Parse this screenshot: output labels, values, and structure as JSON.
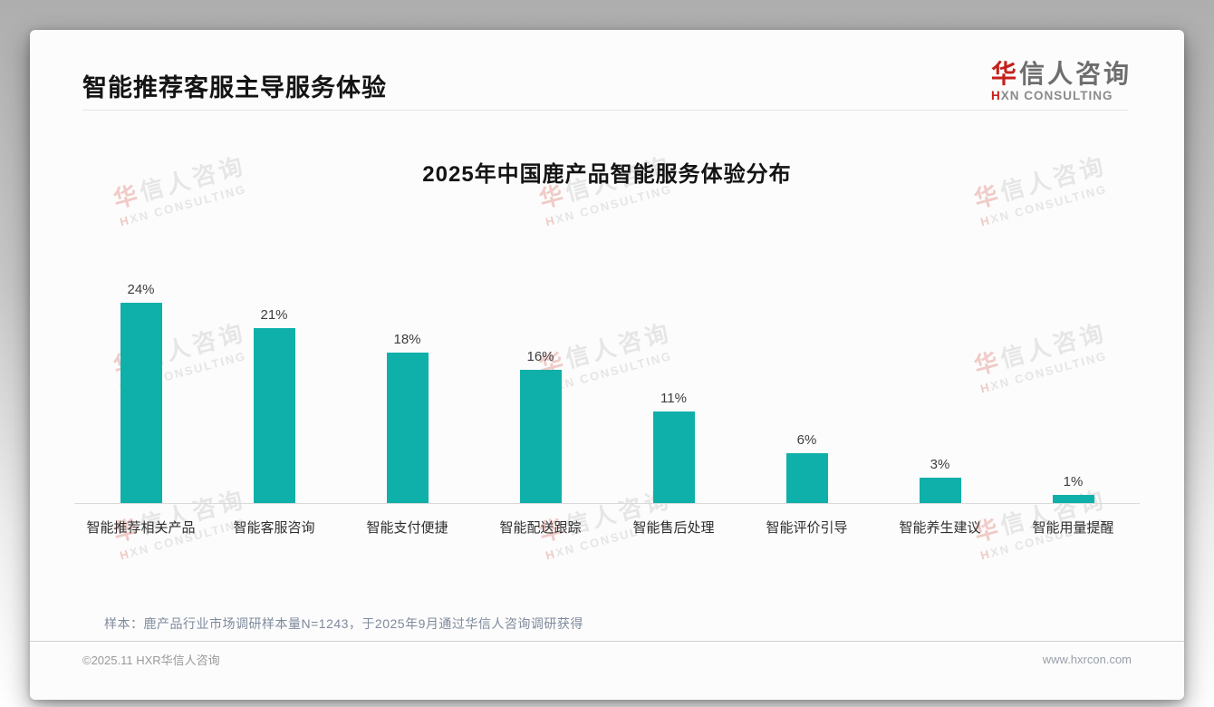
{
  "header": {
    "title": "智能推荐客服主导服务体验"
  },
  "logo": {
    "cn_red": "华",
    "cn_rest": "信人咨询",
    "en_red": "H",
    "en_rest": "XN CONSULTING"
  },
  "watermark": {
    "cn_red": "华",
    "cn_rest": "信人咨询",
    "en_red": "H",
    "en_rest": "XN CONSULTING"
  },
  "chart_data": {
    "type": "bar",
    "title": "2025年中国鹿产品智能服务体验分布",
    "categories": [
      "智能推荐相关产品",
      "智能客服咨询",
      "智能支付便捷",
      "智能配送跟踪",
      "智能售后处理",
      "智能评价引导",
      "智能养生建议",
      "智能用量提醒"
    ],
    "values": [
      24,
      21,
      18,
      16,
      11,
      6,
      3,
      1
    ],
    "unit": "%",
    "ylim": [
      0,
      25
    ],
    "bar_color": "#10b0aa",
    "grid": false,
    "legend": false
  },
  "footer": {
    "note": "样本：鹿产品行业市场调研样本量N=1243，于2025年9月通过华信人咨询调研获得",
    "copyright": "©2025.11 HXR华信人咨询",
    "website": "www.hxrcon.com"
  }
}
